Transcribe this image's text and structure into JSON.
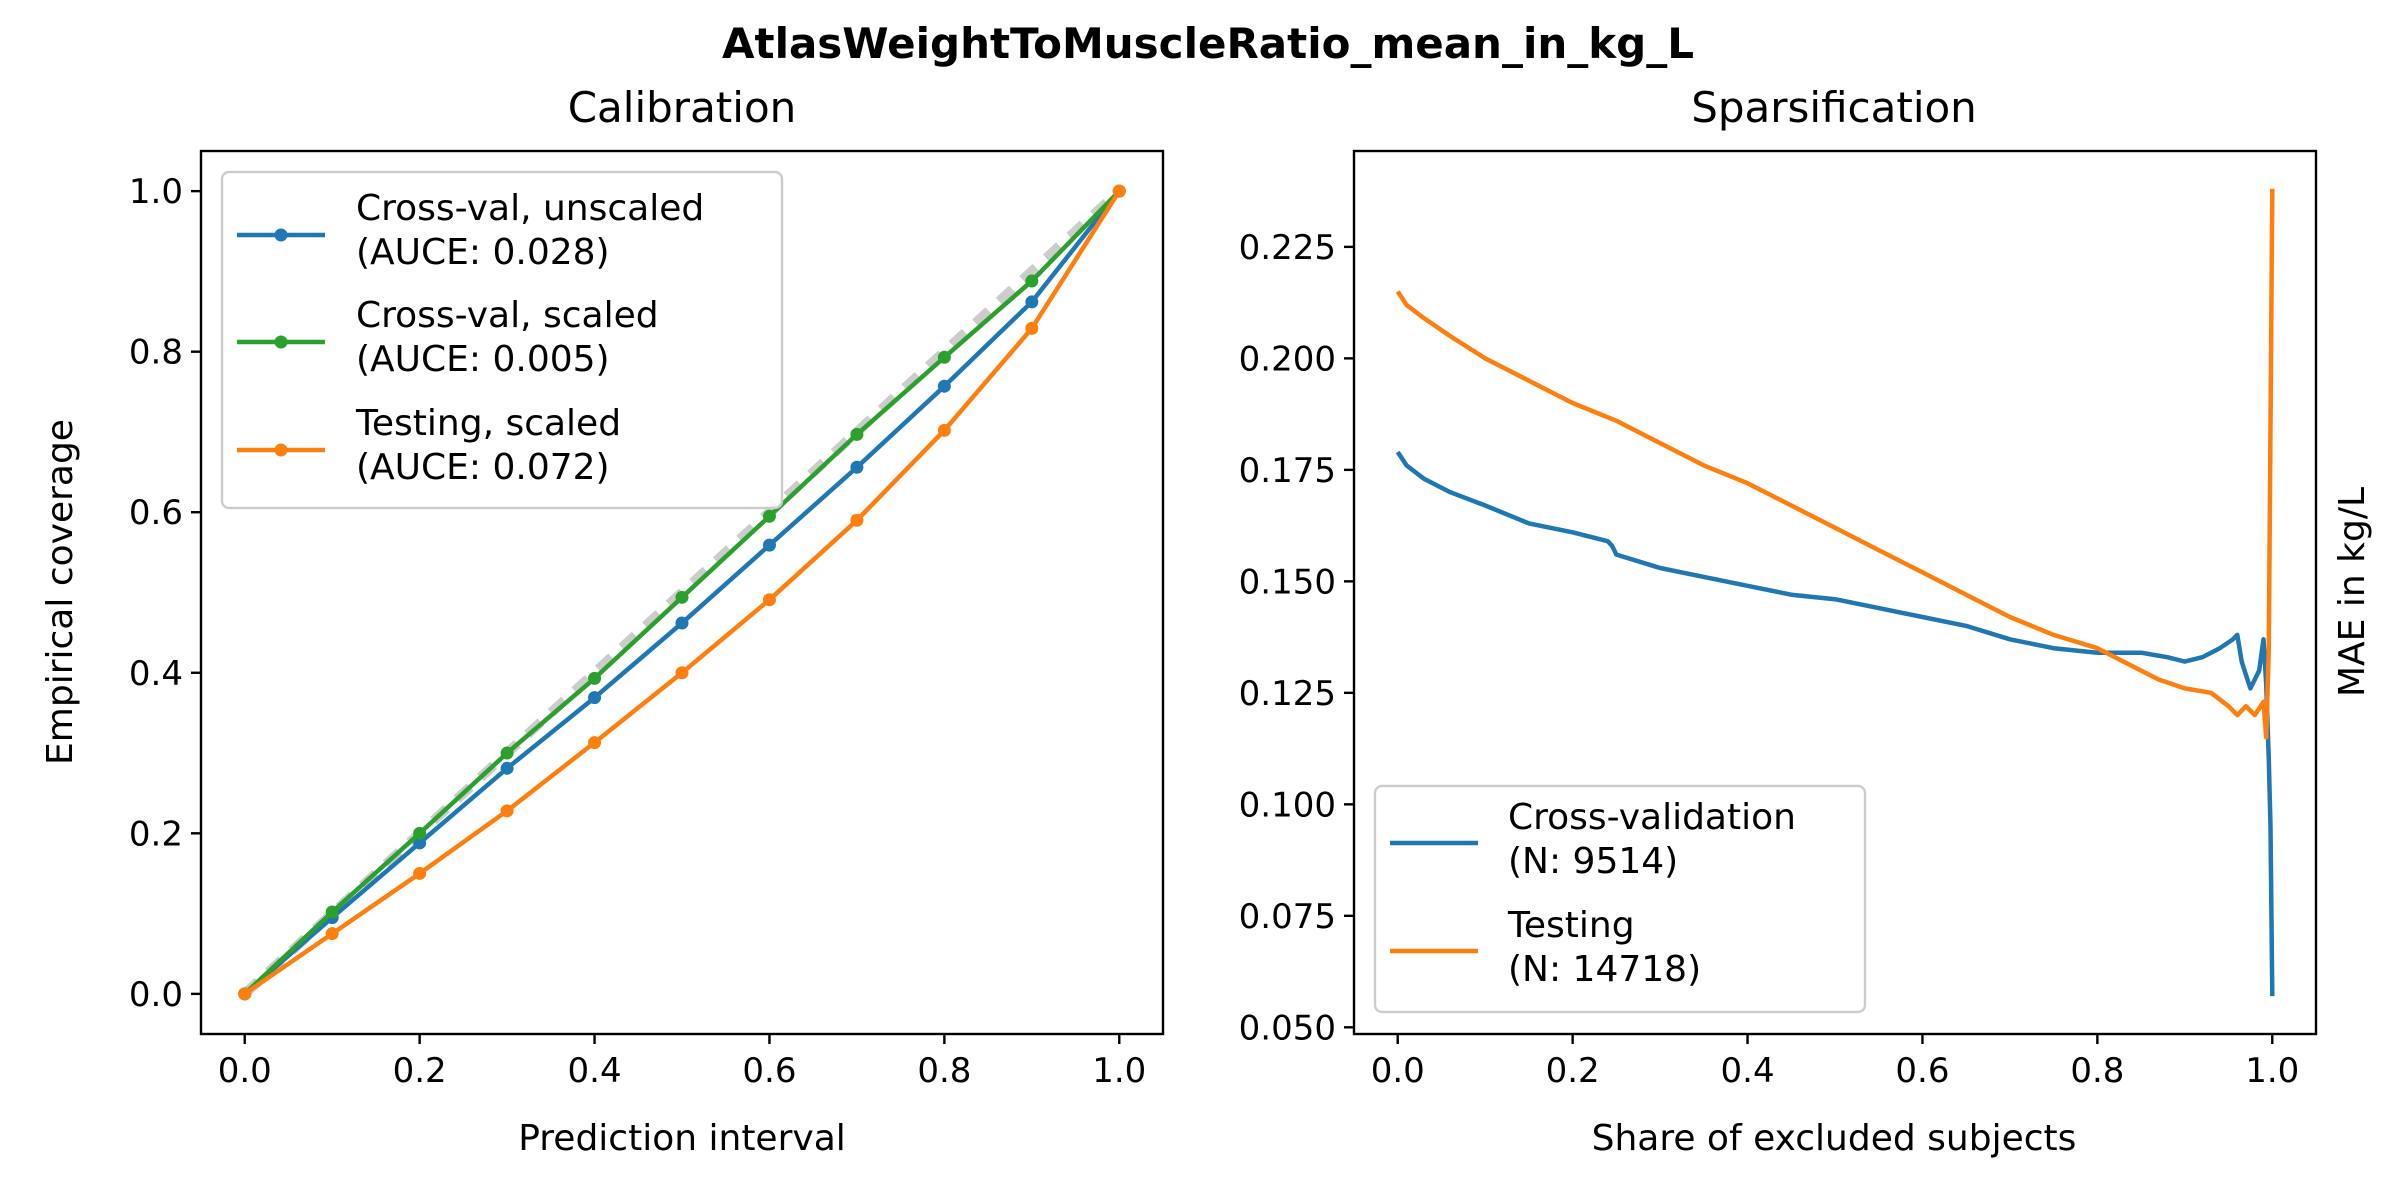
{
  "figure_title": "AtlasWeightToMuscleRatio_mean_in_kg_L",
  "colors": {
    "blue": "#1f77b4",
    "orange": "#ff7f0e",
    "green": "#2ca02c",
    "ideal": "#cccccc"
  },
  "chart_data": [
    {
      "id": "calibration",
      "type": "line",
      "title": "Calibration",
      "xlabel": "Prediction interval",
      "ylabel": "Empirical coverage",
      "xlim": [
        -0.05,
        1.05
      ],
      "ylim": [
        -0.05,
        1.05
      ],
      "xticks": [
        0.0,
        0.2,
        0.4,
        0.6,
        0.8,
        1.0
      ],
      "yticks": [
        0.0,
        0.2,
        0.4,
        0.6,
        0.8,
        1.0
      ],
      "xtick_labels": [
        "0.0",
        "0.2",
        "0.4",
        "0.6",
        "0.8",
        "1.0"
      ],
      "ytick_labels": [
        "0.0",
        "0.2",
        "0.4",
        "0.6",
        "0.8",
        "1.0"
      ],
      "grid": false,
      "legend_position": "upper-left",
      "ideal_line": {
        "x": [
          0,
          1
        ],
        "y": [
          0,
          1
        ],
        "style": "dashed",
        "color": "#cccccc"
      },
      "series": [
        {
          "name": "Cross-val, unscaled",
          "name_line2": "(AUCE: 0.028)",
          "color": "#1f77b4",
          "marker": "circle",
          "x": [
            0.0,
            0.1,
            0.2,
            0.3,
            0.4,
            0.5,
            0.6,
            0.7,
            0.8,
            0.9,
            1.0
          ],
          "y": [
            0.0,
            0.095,
            0.188,
            0.281,
            0.369,
            0.462,
            0.559,
            0.656,
            0.757,
            0.862,
            1.0
          ]
        },
        {
          "name": "Cross-val, scaled",
          "name_line2": "(AUCE: 0.005)",
          "color": "#2ca02c",
          "marker": "circle",
          "x": [
            0.0,
            0.1,
            0.2,
            0.3,
            0.4,
            0.5,
            0.6,
            0.7,
            0.8,
            0.9,
            1.0
          ],
          "y": [
            0.0,
            0.102,
            0.2,
            0.3,
            0.393,
            0.494,
            0.595,
            0.697,
            0.793,
            0.888,
            1.0
          ]
        },
        {
          "name": "Testing, scaled",
          "name_line2": "(AUCE: 0.072)",
          "color": "#ff7f0e",
          "marker": "circle",
          "x": [
            0.0,
            0.1,
            0.2,
            0.3,
            0.4,
            0.5,
            0.6,
            0.7,
            0.8,
            0.9,
            1.0
          ],
          "y": [
            0.0,
            0.075,
            0.15,
            0.228,
            0.313,
            0.4,
            0.491,
            0.59,
            0.702,
            0.829,
            1.0
          ]
        }
      ]
    },
    {
      "id": "sparsification",
      "type": "line",
      "title": "Sparsification",
      "xlabel": "Share of excluded subjects",
      "ylabel": "MAE in kg/L",
      "ylabel_side": "right",
      "xlim": [
        -0.05,
        1.05
      ],
      "ylim": [
        0.0485,
        0.2465
      ],
      "xticks": [
        0.0,
        0.2,
        0.4,
        0.6,
        0.8,
        1.0
      ],
      "yticks": [
        0.05,
        0.075,
        0.1,
        0.125,
        0.15,
        0.175,
        0.2,
        0.225
      ],
      "xtick_labels": [
        "0.0",
        "0.2",
        "0.4",
        "0.6",
        "0.8",
        "1.0"
      ],
      "ytick_labels": [
        "0.050",
        "0.075",
        "0.100",
        "0.125",
        "0.150",
        "0.175",
        "0.200",
        "0.225"
      ],
      "grid": false,
      "legend_position": "lower-left",
      "series": [
        {
          "name": "Cross-validation",
          "name_line2": "(N: 9514)",
          "color": "#1f77b4",
          "x": [
            0.0,
            0.01,
            0.03,
            0.06,
            0.1,
            0.15,
            0.2,
            0.24,
            0.245,
            0.25,
            0.3,
            0.35,
            0.4,
            0.45,
            0.5,
            0.55,
            0.6,
            0.65,
            0.7,
            0.75,
            0.8,
            0.85,
            0.88,
            0.9,
            0.92,
            0.94,
            0.955,
            0.96,
            0.965,
            0.97,
            0.975,
            0.98,
            0.985,
            0.99,
            0.993,
            0.996,
            0.998,
            1.0
          ],
          "y": [
            0.179,
            0.176,
            0.173,
            0.17,
            0.167,
            0.163,
            0.161,
            0.159,
            0.158,
            0.156,
            0.153,
            0.151,
            0.149,
            0.147,
            0.146,
            0.144,
            0.142,
            0.14,
            0.137,
            0.135,
            0.134,
            0.134,
            0.133,
            0.132,
            0.133,
            0.135,
            0.137,
            0.138,
            0.132,
            0.129,
            0.126,
            0.128,
            0.13,
            0.137,
            0.127,
            0.11,
            0.095,
            0.057
          ]
        },
        {
          "name": "Testing",
          "name_line2": "(N: 14718)",
          "color": "#ff7f0e",
          "x": [
            0.0,
            0.01,
            0.03,
            0.06,
            0.1,
            0.15,
            0.2,
            0.25,
            0.3,
            0.35,
            0.4,
            0.45,
            0.5,
            0.55,
            0.6,
            0.65,
            0.7,
            0.75,
            0.8,
            0.84,
            0.87,
            0.9,
            0.93,
            0.95,
            0.96,
            0.97,
            0.98,
            0.99,
            0.993,
            0.996,
            0.998,
            1.0
          ],
          "y": [
            0.215,
            0.212,
            0.209,
            0.205,
            0.2,
            0.195,
            0.19,
            0.186,
            0.181,
            0.176,
            0.172,
            0.167,
            0.162,
            0.157,
            0.152,
            0.147,
            0.142,
            0.138,
            0.135,
            0.131,
            0.128,
            0.126,
            0.125,
            0.122,
            0.12,
            0.122,
            0.12,
            0.123,
            0.115,
            0.135,
            0.185,
            0.238
          ]
        }
      ]
    }
  ]
}
